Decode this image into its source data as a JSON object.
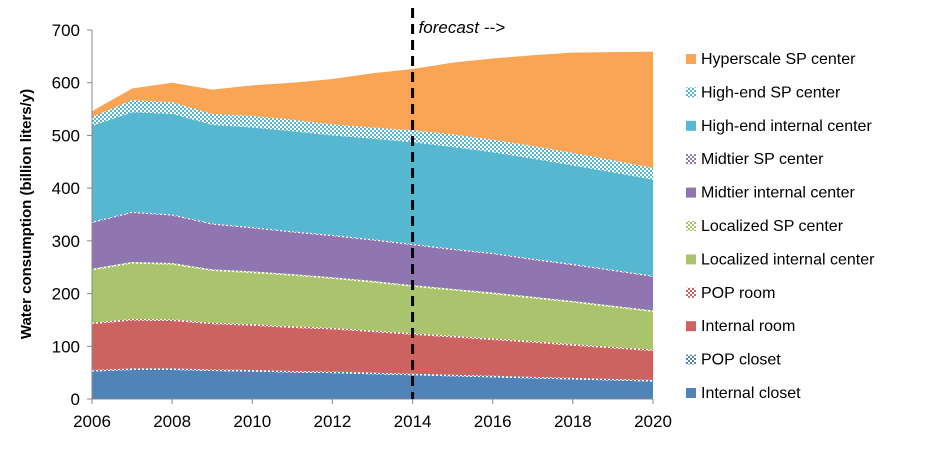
{
  "chart_data": {
    "type": "area",
    "stacked": true,
    "title": "",
    "xlabel": "",
    "ylabel": "Water consumption (billion liters/y)",
    "xlim": [
      2006,
      2020
    ],
    "ylim": [
      0,
      700
    ],
    "x_ticks": [
      2006,
      2008,
      2010,
      2012,
      2014,
      2016,
      2018,
      2020
    ],
    "y_ticks": [
      0,
      100,
      200,
      300,
      400,
      500,
      600,
      700
    ],
    "grid": false,
    "legend_placement": "right",
    "annotation": {
      "x": 2014,
      "text": "forecast -->",
      "style": "dashed vertical line"
    },
    "x": [
      2006,
      2007,
      2008,
      2009,
      2010,
      2011,
      2012,
      2013,
      2014,
      2015,
      2016,
      2017,
      2018,
      2019,
      2020
    ],
    "series": [
      {
        "name": "Internal closet",
        "color": "#5283B8",
        "pattern": "solid",
        "values": [
          52,
          55,
          55,
          53,
          52,
          50,
          49,
          47,
          45,
          43,
          41,
          39,
          37,
          35,
          33
        ]
      },
      {
        "name": "POP closet",
        "color": "#5283B8",
        "pattern": "checker",
        "values": [
          3,
          3,
          3,
          3,
          3,
          3,
          3,
          3,
          3,
          3,
          3,
          3,
          3,
          3,
          3
        ]
      },
      {
        "name": "Internal room",
        "color": "#CD6360",
        "pattern": "solid",
        "values": [
          87,
          91,
          90,
          86,
          84,
          82,
          80,
          77,
          74,
          71,
          68,
          65,
          61,
          58,
          55
        ]
      },
      {
        "name": "POP  room",
        "color": "#CD6360",
        "pattern": "checker",
        "values": [
          3,
          3,
          3,
          3,
          3,
          3,
          3,
          3,
          3,
          3,
          3,
          3,
          3,
          3,
          3
        ]
      },
      {
        "name": "Localized internal center",
        "color": "#A9C46C",
        "pattern": "solid",
        "values": [
          99,
          105,
          104,
          98,
          97,
          96,
          93,
          91,
          88,
          86,
          84,
          81,
          79,
          75,
          71
        ]
      },
      {
        "name": "Localized SP center",
        "color": "#A9C46C",
        "pattern": "checker",
        "values": [
          3,
          3,
          3,
          3,
          3,
          3,
          3,
          3,
          3,
          3,
          3,
          3,
          3,
          3,
          3
        ]
      },
      {
        "name": "Midtier internal center",
        "color": "#8F76B0",
        "pattern": "solid",
        "values": [
          87,
          93,
          90,
          85,
          82,
          79,
          78,
          77,
          76,
          74,
          73,
          70,
          68,
          66,
          64
        ]
      },
      {
        "name": "Midtier SP center",
        "color": "#8F76B0",
        "pattern": "checker",
        "values": [
          2,
          2,
          2,
          2,
          2,
          2,
          2,
          2,
          2,
          2,
          2,
          2,
          2,
          2,
          2
        ]
      },
      {
        "name": "High-end internal center",
        "color": "#57B7D0",
        "pattern": "solid",
        "values": [
          182,
          189,
          191,
          187,
          189,
          190,
          189,
          191,
          193,
          193,
          191,
          190,
          187,
          185,
          182
        ]
      },
      {
        "name": "High-end SP center",
        "color": "#57B7D0",
        "pattern": "checker",
        "values": [
          17,
          23,
          22,
          21,
          22,
          22,
          21,
          21,
          23,
          24,
          24,
          24,
          24,
          23,
          22
        ]
      },
      {
        "name": "Hyperscale SP center",
        "color": "#F9A555",
        "pattern": "solid",
        "values": [
          11,
          22,
          37,
          46,
          58,
          70,
          86,
          103,
          116,
          136,
          154,
          172,
          190,
          205,
          221
        ]
      }
    ]
  }
}
